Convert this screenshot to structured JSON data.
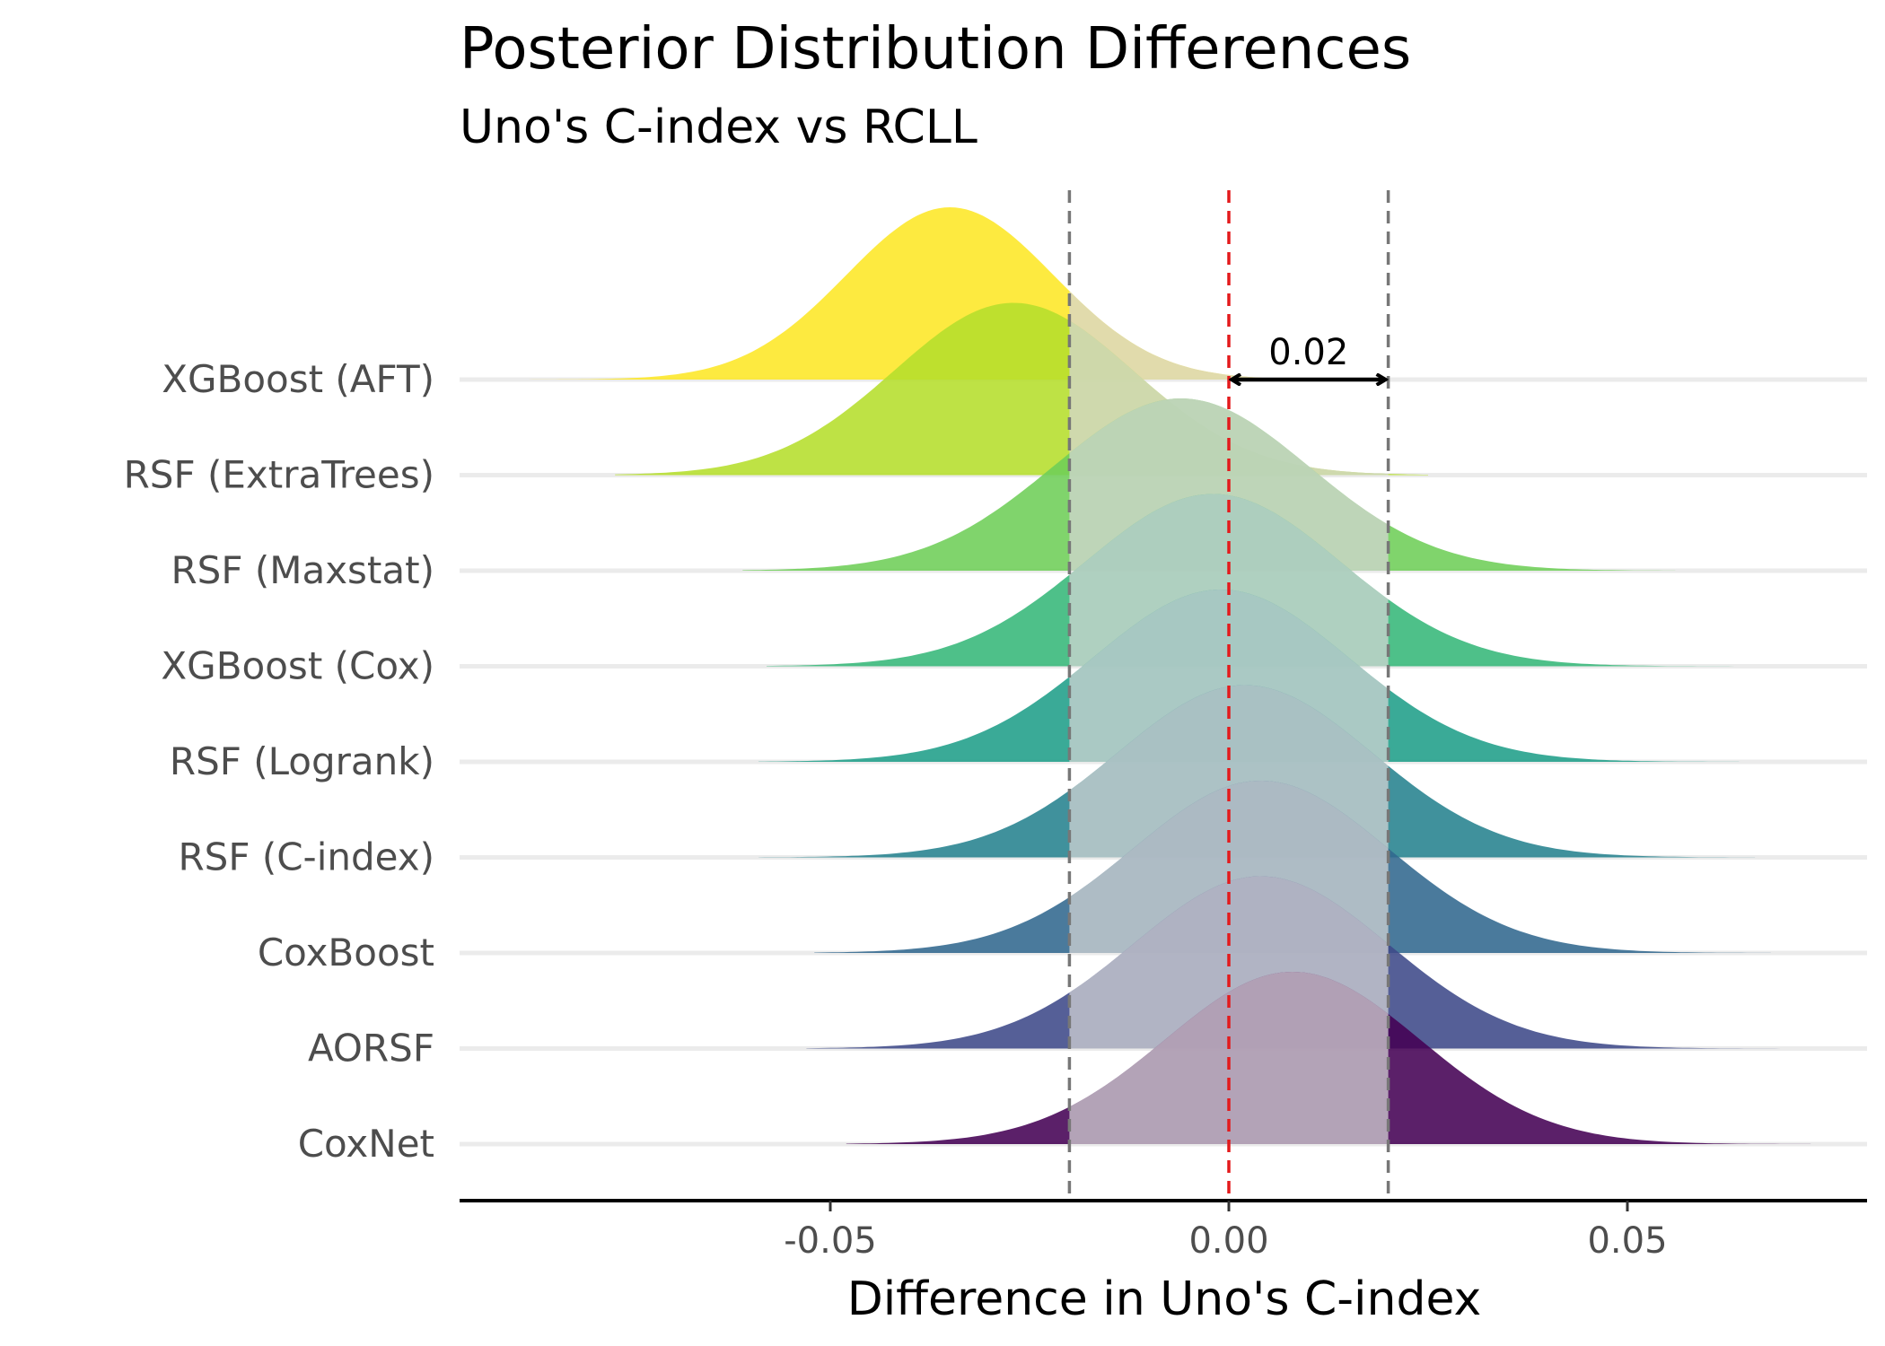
{
  "chart_data": {
    "type": "area",
    "title": "Posterior Distribution Differences",
    "subtitle": "Uno's C-index vs RCLL",
    "xlabel": "Difference in Uno's C-index",
    "ylabel": "",
    "xlim": [
      -0.1,
      0.08
    ],
    "x_ticks": [
      {
        "value": -0.05,
        "label": "-0.05"
      },
      {
        "value": 0.0,
        "label": "0.00"
      },
      {
        "value": 0.05,
        "label": "0.05"
      }
    ],
    "reference_lines": [
      {
        "value": -0.02,
        "style": "dashed",
        "color": "#777777"
      },
      {
        "value": 0.0,
        "style": "dashed",
        "color": "#e31a1c"
      },
      {
        "value": 0.02,
        "style": "dashed",
        "color": "#777777"
      }
    ],
    "rope_region": [
      -0.02,
      0.02
    ],
    "rope_fill": "#d6d6d6",
    "annotation": {
      "label": "0.02",
      "from": 0.0,
      "to": 0.02
    },
    "grid": "horizontal baselines",
    "series": [
      {
        "name": "XGBoost (AFT)",
        "color": "#fde725",
        "mean": -0.035,
        "sd": 0.013,
        "min": -0.09,
        "max": 0.02
      },
      {
        "name": "RSF (ExtraTrees)",
        "color": "#b5de2b",
        "mean": -0.027,
        "sd": 0.015,
        "min": -0.077,
        "max": 0.025
      },
      {
        "name": "RSF (Maxstat)",
        "color": "#6ece58",
        "mean": -0.006,
        "sd": 0.016,
        "min": -0.061,
        "max": 0.056
      },
      {
        "name": "XGBoost (Cox)",
        "color": "#35b779",
        "mean": -0.002,
        "sd": 0.016,
        "min": -0.058,
        "max": 0.065
      },
      {
        "name": "RSF (Logrank)",
        "color": "#1f9e89",
        "mean": -0.001,
        "sd": 0.016,
        "min": -0.059,
        "max": 0.064
      },
      {
        "name": "RSF (C-index)",
        "color": "#26828e",
        "mean": 0.002,
        "sd": 0.016,
        "min": -0.059,
        "max": 0.066
      },
      {
        "name": "CoxBoost",
        "color": "#31688e",
        "mean": 0.004,
        "sd": 0.016,
        "min": -0.052,
        "max": 0.068
      },
      {
        "name": "AORSF",
        "color": "#3e4989",
        "mean": 0.004,
        "sd": 0.016,
        "min": -0.053,
        "max": 0.07
      },
      {
        "name": "CoxNet",
        "color": "#440154",
        "mean": 0.008,
        "sd": 0.016,
        "min": -0.048,
        "max": 0.073
      }
    ]
  }
}
